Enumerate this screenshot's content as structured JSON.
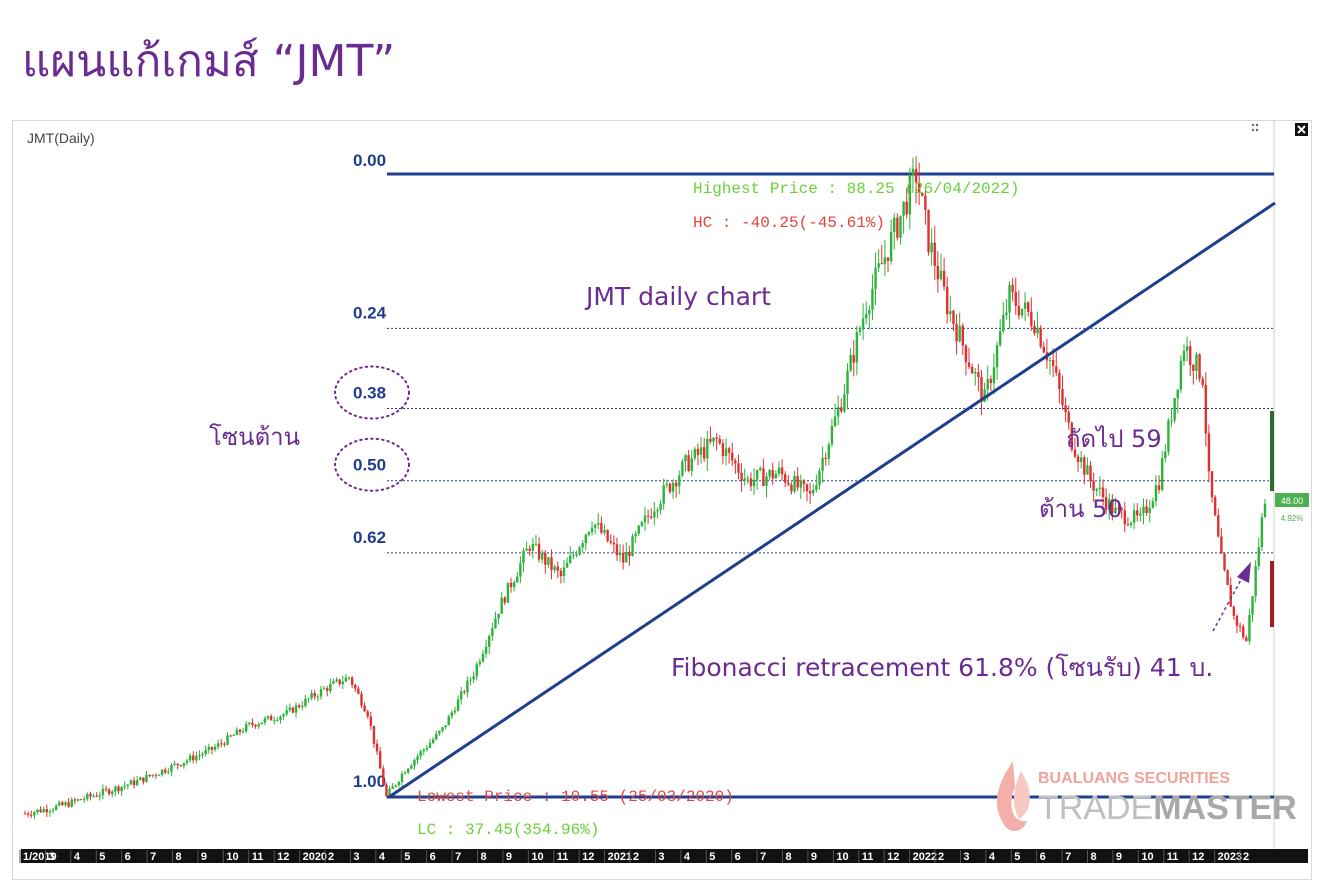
{
  "slide": {
    "title": "แผนแก้เกมส์ “JMT”"
  },
  "chart_header": {
    "symbol_label": "JMT(Daily)"
  },
  "chart_data": {
    "type": "line",
    "subtitle_note": "JMT daily chart",
    "x_ticks": [
      "1/2019",
      "3",
      "4",
      "5",
      "6",
      "7",
      "8",
      "9",
      "10",
      "11",
      "12",
      "2020",
      "2",
      "3",
      "4",
      "5",
      "6",
      "7",
      "8",
      "9",
      "10",
      "11",
      "12",
      "2021",
      "2",
      "3",
      "4",
      "5",
      "6",
      "7",
      "8",
      "9",
      "10",
      "11",
      "12",
      "2022",
      "2",
      "3",
      "4",
      "5",
      "6",
      "7",
      "8",
      "9",
      "10",
      "11",
      "12",
      "2023",
      "2"
    ],
    "fib_levels": [
      {
        "label": "0.00",
        "price": 88.25
      },
      {
        "label": "0.24",
        "price": 69.0
      },
      {
        "label": "0.38",
        "price": 59.0
      },
      {
        "label": "0.50",
        "price": 50.0
      },
      {
        "label": "0.62",
        "price": 41.0
      },
      {
        "label": "1.00",
        "price": 10.55
      }
    ],
    "circled_levels": [
      "0.38",
      "0.50"
    ],
    "price_path": [
      [
        0,
        8.5
      ],
      [
        12,
        9.5
      ],
      [
        24,
        11
      ],
      [
        36,
        12.5
      ],
      [
        48,
        14.5
      ],
      [
        60,
        16.5
      ],
      [
        72,
        19.5
      ],
      [
        84,
        21
      ],
      [
        96,
        24
      ],
      [
        104,
        25.5
      ],
      [
        110,
        21
      ],
      [
        116,
        10.55
      ],
      [
        122,
        14
      ],
      [
        134,
        19
      ],
      [
        144,
        26
      ],
      [
        152,
        34
      ],
      [
        162,
        42
      ],
      [
        172,
        38
      ],
      [
        182,
        45
      ],
      [
        192,
        40
      ],
      [
        202,
        47
      ],
      [
        212,
        52
      ],
      [
        222,
        55
      ],
      [
        232,
        50
      ],
      [
        242,
        51
      ],
      [
        252,
        48
      ],
      [
        262,
        60
      ],
      [
        270,
        72
      ],
      [
        276,
        78
      ],
      [
        282,
        84
      ],
      [
        286,
        88.25
      ],
      [
        290,
        80
      ],
      [
        296,
        72
      ],
      [
        302,
        66
      ],
      [
        308,
        60
      ],
      [
        316,
        73
      ],
      [
        324,
        70
      ],
      [
        330,
        64
      ],
      [
        336,
        55
      ],
      [
        342,
        50
      ],
      [
        350,
        46
      ],
      [
        358,
        45
      ],
      [
        364,
        50
      ],
      [
        372,
        67
      ],
      [
        378,
        63
      ],
      [
        380,
        50
      ],
      [
        384,
        40
      ],
      [
        388,
        33
      ],
      [
        392,
        30
      ],
      [
        396,
        42
      ],
      [
        398,
        48
      ]
    ],
    "annotations": {
      "highest": "Highest Price : 88.25 (26/04/2022)",
      "hc": "HC : -40.25(-45.61%)",
      "lowest": "Lowest Price : 10.55 (25/03/2020)",
      "lc": "LC : 37.45(354.96%)",
      "resistance_zone": "โซนต้าน",
      "next_target": "ถัดไป 59",
      "resist_50": "ต้าน 50",
      "fib_note": "Fibonacci retracement 61.8% (โซนรับ) 41 บ.",
      "last_price": "48.00",
      "last_change": "4.92%"
    },
    "colors": {
      "up": "#2bb33a",
      "down": "#e03030",
      "fib_line": "#1f3e8c",
      "trend_line": "#1f3e8c",
      "note": "#6b2c91"
    }
  },
  "watermark": {
    "line1": "BUALUANG SECURITIES",
    "line2a": "TRADE",
    "line2b": "MASTER"
  }
}
